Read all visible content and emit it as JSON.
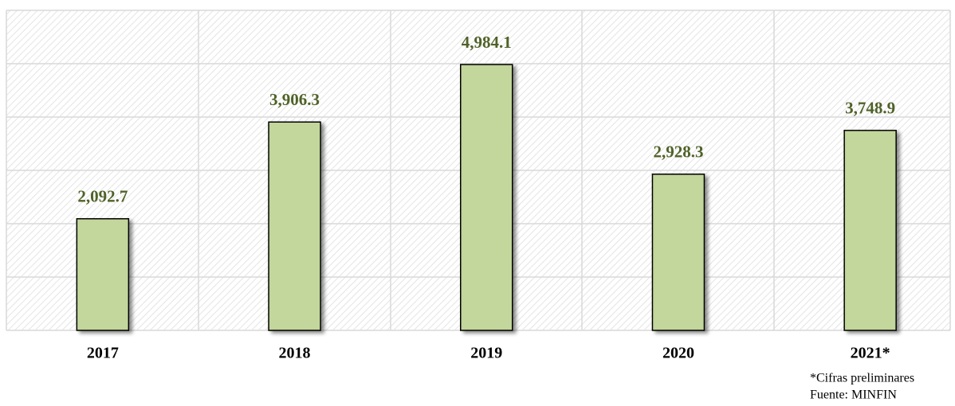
{
  "chart_data": {
    "type": "bar",
    "categories": [
      "2017",
      "2018",
      "2019",
      "2020",
      "2021*"
    ],
    "values": [
      2092.7,
      3906.3,
      4984.1,
      2928.3,
      3748.9
    ],
    "value_labels": [
      "2,092.7",
      "3,906.3",
      "4,984.1",
      "2,928.3",
      "3,748.9"
    ],
    "color": "#c3d69b",
    "label_color": "#4f6228",
    "ylim": [
      0,
      6000
    ],
    "yticks": [
      0,
      1000,
      2000,
      3000,
      4000,
      5000,
      6000
    ],
    "grid": true,
    "notes": [
      "*Cifras preliminares",
      "Fuente: MINFIN"
    ]
  }
}
